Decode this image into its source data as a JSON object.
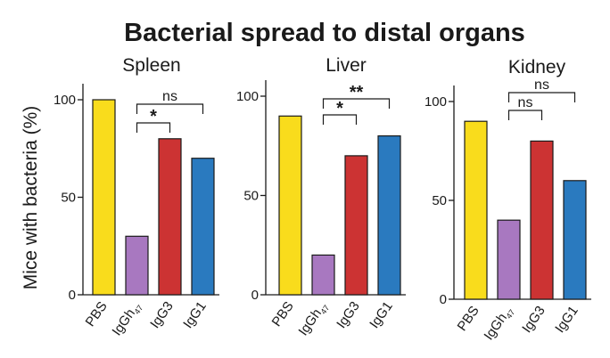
{
  "chart_data": {
    "title": "Bacterial spread to distal organs",
    "ylabel": "Mice with bacteria (%)",
    "panels": [
      {
        "type": "bar",
        "title": "Spleen",
        "categories": [
          "PBS",
          "IgGh",
          "IgG3",
          "IgG1"
        ],
        "category_subscripts": [
          "",
          "47",
          "",
          ""
        ],
        "values": [
          100,
          30,
          80,
          70
        ],
        "colors": [
          "#f9dc1c",
          "#a878c0",
          "#cc3333",
          "#2a7abf"
        ],
        "ylim": [
          0,
          100
        ],
        "yticks": [
          0,
          50,
          100
        ],
        "brackets": [
          {
            "from": 1,
            "to": 2,
            "label": "*"
          },
          {
            "from": 1,
            "to": 3,
            "label": "ns"
          }
        ]
      },
      {
        "type": "bar",
        "title": "Liver",
        "categories": [
          "PBS",
          "IgGh",
          "IgG3",
          "IgG1"
        ],
        "category_subscripts": [
          "",
          "47",
          "",
          ""
        ],
        "values": [
          90,
          20,
          70,
          80
        ],
        "colors": [
          "#f9dc1c",
          "#a878c0",
          "#cc3333",
          "#2a7abf"
        ],
        "ylim": [
          0,
          100
        ],
        "yticks": [
          0,
          50,
          100
        ],
        "brackets": [
          {
            "from": 1,
            "to": 2,
            "label": "*"
          },
          {
            "from": 1,
            "to": 3,
            "label": "**"
          }
        ]
      },
      {
        "type": "bar",
        "title": "Kidney",
        "categories": [
          "PBS",
          "IgGh",
          "IgG3",
          "IgG1"
        ],
        "category_subscripts": [
          "",
          "47",
          "",
          ""
        ],
        "values": [
          90,
          40,
          80,
          60
        ],
        "colors": [
          "#f9dc1c",
          "#a878c0",
          "#cc3333",
          "#2a7abf"
        ],
        "ylim": [
          0,
          100
        ],
        "yticks": [
          0,
          50,
          100
        ],
        "brackets": [
          {
            "from": 1,
            "to": 2,
            "label": "ns"
          },
          {
            "from": 1,
            "to": 3,
            "label": "ns"
          }
        ]
      }
    ]
  }
}
